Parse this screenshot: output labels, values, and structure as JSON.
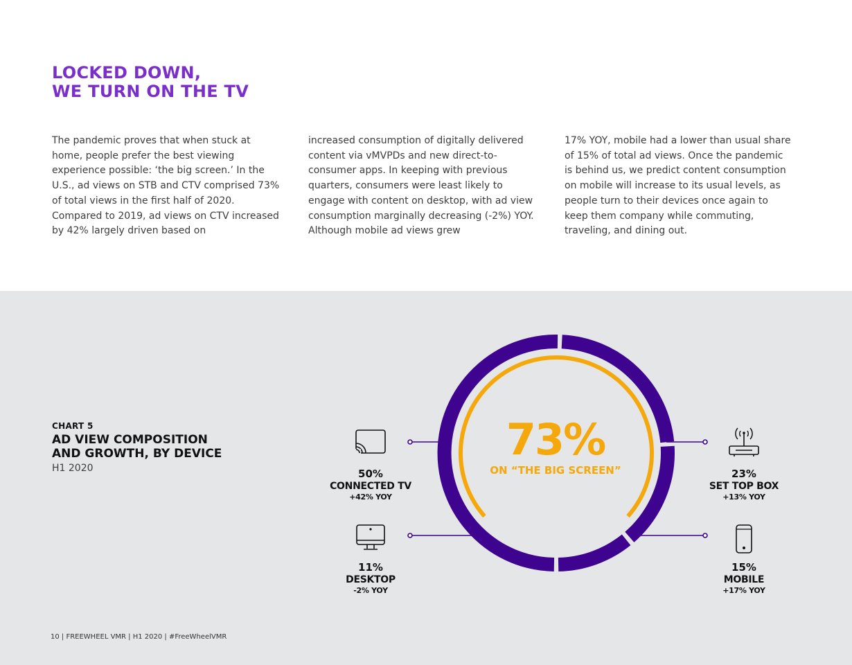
{
  "headline": {
    "line1": "LOCKED DOWN,",
    "line2": "WE TURN ON THE TV"
  },
  "body": {
    "col1": "The pandemic proves that when stuck at home, people prefer the best viewing experience possible: ‘the big screen.’ In the U.S., ad views on STB and CTV comprised 73% of total views in the first half of 2020. Compared to 2019, ad views on CTV increased by 42% largely driven based on",
    "col2": "increased consumption of digitally delivered content via vMVPDs and new direct-to-consumer apps. In keeping with previous quarters, consumers were least likely to engage with content on desktop, with ad view consumption marginally decreasing (-2%) YOY. Although mobile ad views grew",
    "col3": "17% YOY, mobile had a lower than usual share of 15% of total ad views. Once the pandemic is behind us, we predict content consumption on mobile will increase to its usual levels, as people turn to their devices once again to keep them company while commuting, traveling, and dining out."
  },
  "chart_label": {
    "number": "CHART 5",
    "title_line1": "AD VIEW COMPOSITION",
    "title_line2": "AND GROWTH, BY DEVICE",
    "subtitle": "H1 2020"
  },
  "chart_data": {
    "type": "pie",
    "center_value": "73%",
    "center_label": "ON “THE BIG SCREEN”",
    "big_screen_share": 73,
    "categories": [
      "CONNECTED TV",
      "SET TOP BOX",
      "MOBILE",
      "DESKTOP"
    ],
    "values": [
      50,
      23,
      15,
      11
    ],
    "value_labels": [
      "50%",
      "23%",
      "15%",
      "11%"
    ],
    "yoy_labels": [
      "+42% YOY",
      "+13% YOY",
      "+17% YOY",
      "-2% YOY"
    ],
    "icons": [
      "cast-icon",
      "router-icon",
      "phone-icon",
      "monitor-icon"
    ]
  },
  "colors": {
    "purple": "#3f048f",
    "gold": "#f5a80c",
    "headline": "#7b2fc9",
    "line": "#3f048f"
  },
  "footer": "10  |  FREEWHEEL VMR  |  H1 2020  |  #FreeWheelVMR"
}
